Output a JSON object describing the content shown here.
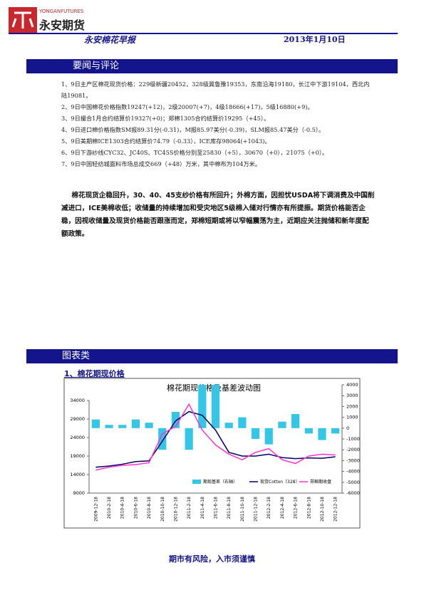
{
  "header": {
    "brand_en": "YONGANFUTURES",
    "brand_cn": "永安期货",
    "title": "永安棉花早报",
    "date": "2013年1月10日"
  },
  "sections": {
    "news": "要闻与评论",
    "charts": "图表类"
  },
  "news": [
    "1、9日主产区棉花现货价格：229级新疆20452，328级冀鲁豫19353，东南沿海19180，长江中下游19104，西北内陆19081。",
    "2、9日中国棉花价格指数19247(+12)，2级20007(+7)，4级18666(+17)，5级16880(+9)。",
    "3、9日撮合1月合约结算价19327(+0)；郑棉1305合约结算价19295（+45）。",
    "4、9日进口棉价格指数SM报89.31分(-0.31)，M报85.97美分(-0.39)，SLM报85.47美分（-0.5）。",
    "5、9日美期棉ICE1303合约结算价74.79（-0.33），ICE库存98064(+1043)。",
    "6、9日下游纱线CYC32、JC40S、TC45S价格分别至25830（+5），30670（+0），21075（+0）。",
    "7、9日中国轻纺城面料市场总成交669（+48）万米，其中棉布为104万米。"
  ],
  "commentary": "棉花现货企稳回升，30、40、45支纱价格有所回升；外棉方面，因担忧USDA将下调消费及中国削减进口，ICE美棉收低；收储量的持续增加和受灾地区5级棉入储对行情亦有所提振。期货价格能否企稳，因视收储量及现货价格能否跟涨而定，郑棉短期或将以窄幅震荡为主，近期应关注抛储和新年度配额政策。",
  "chart_heading": "1、棉花期现价格",
  "footer": "期市有风险，入市须谨慎",
  "chart_data": {
    "type": "combo",
    "title": "棉花期现价格及基差波动图",
    "categories": [
      "2009-12-18",
      "2010-2-18",
      "2010-4-18",
      "2010-6-18",
      "2010-8-18",
      "2010-10-18",
      "2010-12-18",
      "2011-2-18",
      "2011-4-18",
      "2011-6-18",
      "2011-8-18",
      "2011-10-18",
      "2011-12-18",
      "2012-2-18",
      "2012-4-18",
      "2012-6-18",
      "2012-8-18",
      "2012-10-18",
      "2012-12-18"
    ],
    "series": [
      {
        "name": "期现基差（右轴）",
        "color": "#33c6e6",
        "kind": "bar",
        "axis": "y2",
        "values": [
          800,
          300,
          300,
          800,
          500,
          -2000,
          1500,
          -2000,
          4000,
          4000,
          500,
          1000,
          -1000,
          -1500,
          600,
          1300,
          -500,
          -1100,
          -500
        ]
      },
      {
        "name": "现货Cotton（328）",
        "color": "#000066",
        "kind": "line",
        "values": [
          16000,
          16300,
          16800,
          17500,
          17700,
          23000,
          28500,
          31000,
          30000,
          26000,
          20000,
          19000,
          19000,
          19500,
          18600,
          18300,
          18500,
          18400,
          18800
        ]
      },
      {
        "name": "郑棉期收盘",
        "color": "#ff33cc",
        "kind": "line",
        "values": [
          15200,
          16000,
          16500,
          16700,
          17200,
          25000,
          27000,
          33000,
          26000,
          22000,
          19500,
          18000,
          20000,
          21000,
          18000,
          17000,
          19000,
          19500,
          19300
        ]
      }
    ],
    "ylim": [
      9000,
      34000
    ],
    "yticks": [
      9000,
      14000,
      19000,
      24000,
      29000,
      34000
    ],
    "y2lim": [
      -6000,
      4000
    ],
    "y2ticks": [
      -6000,
      -5000,
      -4000,
      -3000,
      -2000,
      -1000,
      0,
      1000,
      2000,
      3000,
      4000
    ]
  }
}
